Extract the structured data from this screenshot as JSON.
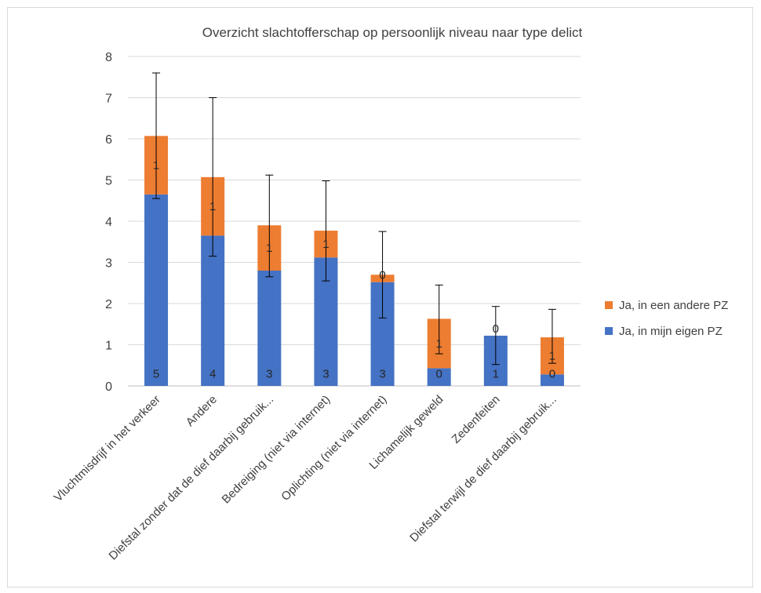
{
  "chart_data": {
    "type": "bar",
    "stacked": true,
    "title": "Overzicht slachtofferschap op persoonlijk niveau naar type delict",
    "categories": [
      "Vluchtmisdrijf in het verkeer",
      "Andere",
      "Diefstal zonder dat de dief daarbij gebruik...",
      "Bedreiging (niet via internet)",
      "Oplichting (niet via internet)",
      "Lichamelijk geweld",
      "Zedenfeiten",
      "Diefstal terwijl de dief daarbij gebruik..."
    ],
    "series": [
      {
        "name": "Ja, in mijn eigen PZ",
        "color": "#4472c4",
        "values": [
          4.65,
          3.65,
          2.8,
          3.12,
          2.52,
          0.43,
          1.22,
          0.28
        ],
        "data_labels": [
          "5",
          "4",
          "3",
          "3",
          "3",
          "0",
          "1",
          "0"
        ]
      },
      {
        "name": "Ja, in een andere PZ",
        "color": "#ed7d31",
        "values": [
          1.42,
          1.42,
          1.1,
          0.65,
          0.18,
          1.2,
          0,
          0.9
        ],
        "data_labels": [
          "1",
          "1",
          "1",
          "1",
          "0",
          "1",
          "0",
          "1"
        ]
      }
    ],
    "error_bars": [
      {
        "low": 4.55,
        "high": 7.6
      },
      {
        "low": 3.15,
        "high": 7.0
      },
      {
        "low": 2.65,
        "high": 5.12
      },
      {
        "low": 2.55,
        "high": 4.98
      },
      {
        "low": 1.65,
        "high": 3.75
      },
      {
        "low": 0.78,
        "high": 2.45
      },
      {
        "low": 0.52,
        "high": 1.93
      },
      {
        "low": 0.55,
        "high": 1.86
      }
    ],
    "y_ticks": [
      "0",
      "1",
      "2",
      "3",
      "4",
      "5",
      "6",
      "7",
      "8"
    ],
    "ylim": [
      0,
      8
    ],
    "grid": true,
    "legend_position": "right"
  }
}
